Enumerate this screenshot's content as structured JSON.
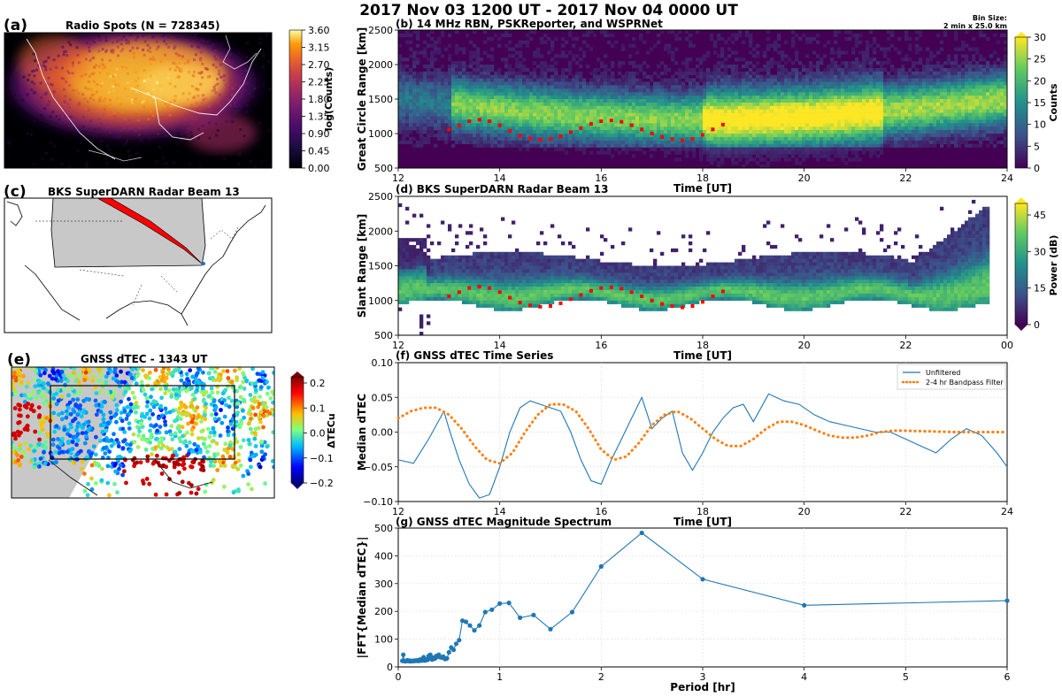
{
  "figure": {
    "suptitle": "2017 Nov 03 1200 UT - 2017 Nov 04 0000 UT",
    "bin_size_label": "Bin Size:",
    "bin_size_value": "2 min x 25.0 km"
  },
  "panels": {
    "a": {
      "label": "(a)",
      "title": "Radio Spots (N = 728345)",
      "colorbar_label": "log(Counts)",
      "colorbar_ticks": [
        "3.60",
        "3.15",
        "2.70",
        "2.25",
        "1.80",
        "1.35",
        "0.90",
        "0.45",
        "0.00"
      ],
      "colormap": "inferno"
    },
    "b": {
      "label": "(b)",
      "title": "14 MHz RBN, PSKReporter, and WSPRNet",
      "colorbar_label": "Counts",
      "colorbar_ticks": [
        "30",
        "25",
        "20",
        "15",
        "10",
        "5",
        "0"
      ],
      "colormap": "viridis"
    },
    "c": {
      "label": "(c)",
      "title": "BKS SuperDARN Radar Beam 13"
    },
    "d": {
      "label": "(d)",
      "title": "BKS SuperDARN Radar Beam 13",
      "colorbar_label": "Power (dB)",
      "colorbar_ticks": [
        "45",
        "30",
        "15",
        "0"
      ],
      "colormap": "viridis"
    },
    "e": {
      "label": "(e)",
      "title": "GNSS dTEC - 1343 UT",
      "colorbar_label": "ΔTECu",
      "colorbar_ticks": [
        "0.2",
        "0.1",
        "0.0",
        "−0.1",
        "−0.2"
      ],
      "colormap": "jet"
    },
    "f": {
      "label": "(f)",
      "title": "GNSS dTEC Time Series"
    },
    "g": {
      "label": "(g)",
      "title": "GNSS dTEC Magnitude Spectrum"
    }
  },
  "colors": {
    "series_blue": "#1f77b4",
    "series_orange": "#ff7f0e",
    "marker_red": "#ff0000",
    "ground_gray": "#c8c8c8"
  },
  "chart_data": [
    {
      "id": "b",
      "type": "heatmap",
      "xlabel": "Time [UT]",
      "ylabel": "Great Circle Range [km]",
      "xlim": [
        12,
        24
      ],
      "ylim": [
        500,
        2500
      ],
      "x_ticks": [
        "12",
        "14",
        "16",
        "18",
        "20",
        "22",
        "24"
      ],
      "y_ticks": [
        "500",
        "1000",
        "1500",
        "2000",
        "2500"
      ],
      "color_range": [
        0,
        30
      ],
      "overlay_points": {
        "color": "red",
        "x": [
          13.0,
          13.2,
          13.4,
          13.6,
          13.8,
          14.0,
          14.2,
          14.4,
          14.6,
          14.8,
          15.0,
          15.2,
          15.4,
          15.6,
          15.8,
          16.0,
          16.2,
          16.4,
          16.6,
          16.8,
          17.0,
          17.2,
          17.4,
          17.6,
          17.8,
          18.0,
          18.2,
          18.4
        ],
        "y": [
          1060,
          1120,
          1180,
          1200,
          1180,
          1120,
          1040,
          970,
          930,
          910,
          920,
          960,
          1020,
          1080,
          1140,
          1180,
          1190,
          1170,
          1120,
          1060,
          1000,
          950,
          920,
          900,
          920,
          980,
          1060,
          1130
        ]
      }
    },
    {
      "id": "d",
      "type": "heatmap",
      "xlabel": "Time [UT]",
      "ylabel": "Slant Range [km]",
      "xlim": [
        12,
        24
      ],
      "ylim": [
        500,
        2500
      ],
      "x_ticks": [
        "12",
        "14",
        "16",
        "18",
        "20",
        "22",
        "00"
      ],
      "y_ticks": [
        "500",
        "1000",
        "1500",
        "2000",
        "2500"
      ],
      "color_range": [
        0,
        50
      ],
      "overlay_points": {
        "color": "red",
        "x": [
          13.0,
          13.2,
          13.4,
          13.6,
          13.8,
          14.0,
          14.2,
          14.4,
          14.6,
          14.8,
          15.0,
          15.2,
          15.4,
          15.6,
          15.8,
          16.0,
          16.2,
          16.4,
          16.6,
          16.8,
          17.0,
          17.2,
          17.4,
          17.6,
          17.8,
          18.0,
          18.2,
          18.4
        ],
        "y": [
          1060,
          1120,
          1180,
          1200,
          1180,
          1120,
          1040,
          970,
          930,
          910,
          920,
          960,
          1020,
          1080,
          1140,
          1180,
          1190,
          1170,
          1120,
          1060,
          1000,
          950,
          920,
          900,
          920,
          980,
          1060,
          1130
        ]
      }
    },
    {
      "id": "f",
      "type": "line",
      "xlabel": "Time [UT]",
      "ylabel": "Median dTEC",
      "xlim": [
        12,
        24
      ],
      "ylim": [
        -0.1,
        0.1
      ],
      "x_ticks": [
        "12",
        "14",
        "16",
        "18",
        "20",
        "22",
        "24"
      ],
      "y_ticks": [
        "−0.10",
        "−0.05",
        "0.00",
        "0.05",
        "0.10"
      ],
      "legend": "top-right",
      "series": [
        {
          "name": "Unfiltered",
          "style": "solid",
          "x": [
            12.0,
            12.3,
            12.6,
            12.9,
            13.0,
            13.2,
            13.4,
            13.6,
            13.8,
            14.0,
            14.2,
            14.4,
            14.6,
            14.8,
            15.0,
            15.2,
            15.4,
            15.6,
            15.8,
            16.0,
            16.2,
            16.4,
            16.6,
            16.8,
            17.0,
            17.2,
            17.4,
            17.6,
            17.8,
            18.0,
            18.2,
            18.4,
            18.6,
            18.8,
            19.0,
            19.3,
            19.6,
            19.9,
            20.2,
            20.5,
            20.8,
            21.1,
            21.4,
            21.7,
            22.0,
            22.3,
            22.6,
            22.9,
            23.2,
            23.5,
            23.8,
            24.0
          ],
          "y": [
            -0.04,
            -0.045,
            -0.01,
            0.03,
            0.005,
            -0.04,
            -0.075,
            -0.095,
            -0.09,
            -0.05,
            0.0,
            0.035,
            0.045,
            0.04,
            0.035,
            0.03,
            0.0,
            -0.04,
            -0.07,
            -0.075,
            -0.04,
            -0.01,
            0.02,
            0.05,
            0.005,
            0.02,
            0.03,
            -0.03,
            -0.055,
            -0.03,
            0.0,
            0.02,
            0.035,
            0.04,
            0.015,
            0.055,
            0.045,
            0.04,
            0.025,
            0.015,
            0.01,
            0.005,
            0.0,
            0.0,
            -0.01,
            -0.02,
            -0.03,
            -0.01,
            0.005,
            -0.005,
            -0.03,
            -0.05
          ]
        },
        {
          "name": "2-4 hr Bandpass Filter",
          "style": "dotted",
          "x": [
            12.0,
            12.25,
            12.5,
            12.75,
            13.0,
            13.25,
            13.5,
            13.75,
            14.0,
            14.25,
            14.5,
            14.75,
            15.0,
            15.25,
            15.5,
            15.75,
            16.0,
            16.25,
            16.5,
            16.75,
            17.0,
            17.25,
            17.5,
            17.75,
            18.0,
            18.25,
            18.5,
            18.75,
            19.0,
            19.25,
            19.5,
            19.75,
            20.0,
            20.25,
            20.5,
            20.75,
            21.0,
            21.25,
            21.5,
            21.75,
            22.0,
            22.5,
            23.0,
            23.5,
            24.0
          ],
          "y": [
            0.02,
            0.03,
            0.035,
            0.035,
            0.025,
            0.005,
            -0.02,
            -0.04,
            -0.045,
            -0.03,
            0.0,
            0.025,
            0.04,
            0.04,
            0.03,
            0.005,
            -0.025,
            -0.04,
            -0.035,
            -0.015,
            0.01,
            0.025,
            0.03,
            0.02,
            0.005,
            -0.01,
            -0.02,
            -0.02,
            -0.01,
            0.005,
            0.015,
            0.015,
            0.01,
            0.002,
            -0.005,
            -0.008,
            -0.008,
            -0.005,
            0.0,
            0.002,
            0.002,
            0.001,
            0.0,
            0.0,
            0.0
          ]
        }
      ]
    },
    {
      "id": "g",
      "type": "line",
      "xlabel": "Period [hr]",
      "ylabel": "|FFT{Median dTEC}|",
      "xlim": [
        0,
        6
      ],
      "ylim": [
        -20,
        550
      ],
      "x_ticks": [
        "0",
        "1",
        "2",
        "3",
        "4",
        "5",
        "6"
      ],
      "y_ticks": [
        "0",
        "100",
        "200",
        "300",
        "400",
        "500"
      ],
      "series": [
        {
          "name": "",
          "style": "solid-markers",
          "x": [
            6.0,
            4.0,
            3.0,
            2.4,
            2.0,
            1.714,
            1.5,
            1.333,
            1.2,
            1.091,
            1.0,
            0.923,
            0.857,
            0.8,
            0.75,
            0.706,
            0.667,
            0.632,
            0.6,
            0.571,
            0.545,
            0.522,
            0.5,
            0.48,
            0.462,
            0.444,
            0.429,
            0.414,
            0.4,
            0.387,
            0.375,
            0.364,
            0.353,
            0.343,
            0.333,
            0.324,
            0.316,
            0.308,
            0.3,
            0.293,
            0.286,
            0.279,
            0.273,
            0.267,
            0.261,
            0.255,
            0.25,
            0.245,
            0.24,
            0.235,
            0.231,
            0.226,
            0.222,
            0.218,
            0.214,
            0.211,
            0.207,
            0.203,
            0.2,
            0.19,
            0.18,
            0.17,
            0.16,
            0.15,
            0.14,
            0.13,
            0.12,
            0.11,
            0.1,
            0.09,
            0.08,
            0.07,
            0.06,
            0.05,
            0.04
          ],
          "y": [
            252,
            233,
            340,
            530,
            392,
            205,
            135,
            193,
            182,
            243,
            240,
            215,
            205,
            150,
            130,
            150,
            165,
            170,
            90,
            75,
            50,
            60,
            40,
            15,
            12,
            22,
            18,
            20,
            30,
            22,
            25,
            15,
            18,
            12,
            10,
            20,
            30,
            15,
            25,
            10,
            12,
            8,
            10,
            12,
            6,
            8,
            20,
            10,
            8,
            12,
            6,
            10,
            8,
            8,
            10,
            6,
            5,
            8,
            6,
            5,
            7,
            5,
            6,
            4,
            5,
            4,
            3,
            6,
            4,
            8,
            5,
            3,
            4,
            30,
            5
          ]
        }
      ]
    }
  ]
}
